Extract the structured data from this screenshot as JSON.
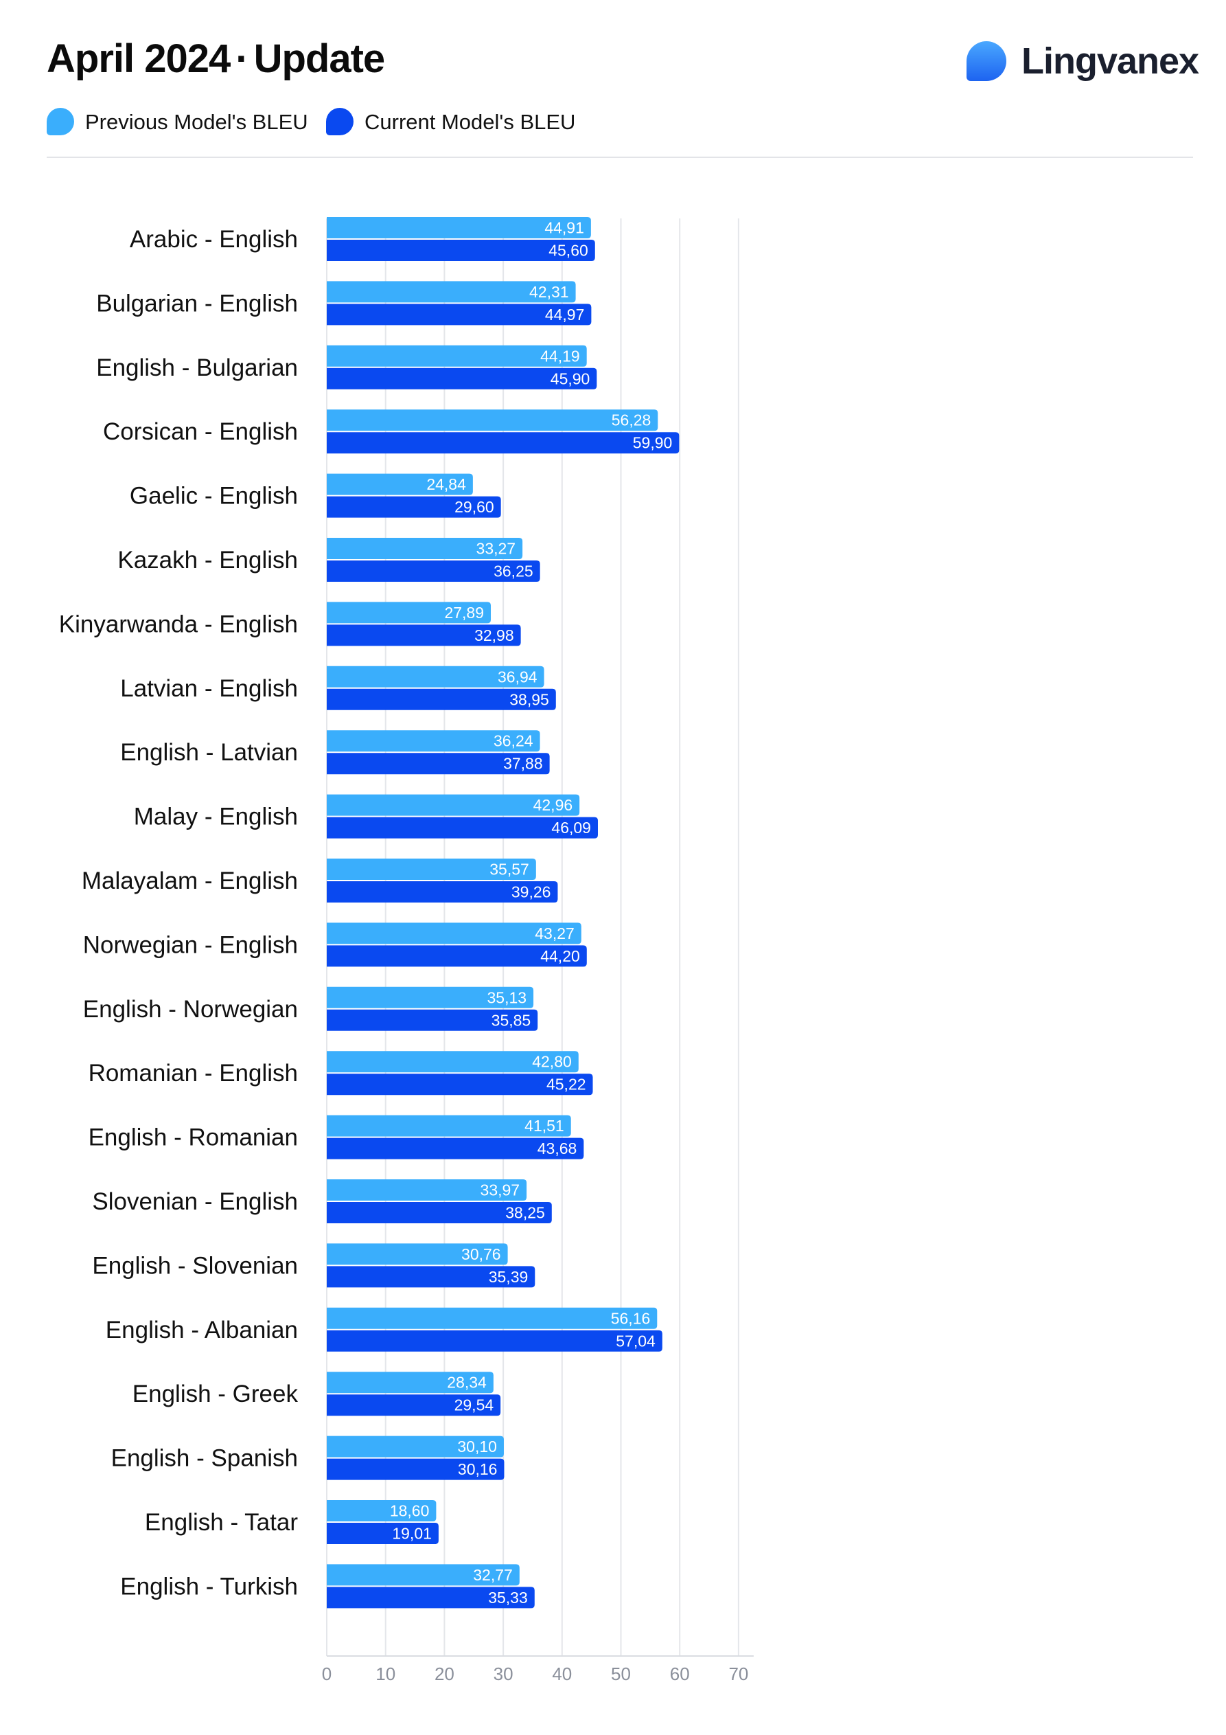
{
  "header": {
    "title_main": "April 2024",
    "title_sep": "·",
    "title_sub": "Update",
    "brand": "Lingvanex"
  },
  "legend": [
    {
      "label": "Previous Model's BLEU",
      "color": "#3aaefc"
    },
    {
      "label": "Current Model's BLEU",
      "color": "#0a49f0"
    }
  ],
  "chart_data": {
    "type": "bar",
    "orientation": "horizontal",
    "categories": [
      "Arabic - English",
      "Bulgarian - English",
      "English - Bulgarian",
      "Corsican - English",
      "Gaelic - English",
      "Kazakh - English",
      "Kinyarwanda - English",
      "Latvian - English",
      "English - Latvian",
      "Malay - English",
      "Malayalam - English",
      "Norwegian - English",
      "English - Norwegian",
      "Romanian - English",
      "English - Romanian",
      "Slovenian - English",
      "English - Slovenian",
      "English - Albanian",
      "English - Greek",
      "English - Spanish",
      "English - Tatar",
      "English - Turkish"
    ],
    "series": [
      {
        "name": "Previous Model's BLEU",
        "color": "#3aaefc",
        "values": [
          44.91,
          42.31,
          44.19,
          56.28,
          24.84,
          33.27,
          27.89,
          36.94,
          36.24,
          42.96,
          35.57,
          43.27,
          35.13,
          42.8,
          41.51,
          33.97,
          30.76,
          56.16,
          28.34,
          30.1,
          18.6,
          32.77
        ],
        "value_labels": [
          "44,91",
          "42,31",
          "44,19",
          "56,28",
          "24,84",
          "33,27",
          "27,89",
          "36,94",
          "36,24",
          "42,96",
          "35,57",
          "43,27",
          "35,13",
          "42,80",
          "41,51",
          "33,97",
          "30,76",
          "56,16",
          "28,34",
          "30,10",
          "18,60",
          "32,77"
        ]
      },
      {
        "name": "Current Model's BLEU",
        "color": "#0a49f0",
        "values": [
          45.6,
          44.97,
          45.9,
          59.9,
          29.6,
          36.25,
          32.98,
          38.95,
          37.88,
          46.09,
          39.26,
          44.2,
          35.85,
          45.22,
          43.68,
          38.25,
          35.39,
          57.04,
          29.54,
          30.16,
          19.01,
          35.33
        ],
        "value_labels": [
          "45,60",
          "44,97",
          "45,90",
          "59,90",
          "29,60",
          "36,25",
          "32,98",
          "38,95",
          "37,88",
          "46,09",
          "39,26",
          "44,20",
          "35,85",
          "45,22",
          "43,68",
          "38,25",
          "35,39",
          "57,04",
          "29,54",
          "30,16",
          "19,01",
          "35,33"
        ]
      }
    ],
    "xlim": [
      0,
      70
    ],
    "xticks": [
      0,
      10,
      20,
      30,
      40,
      50,
      60,
      70
    ],
    "grid": true,
    "legend_position": "top-left"
  }
}
